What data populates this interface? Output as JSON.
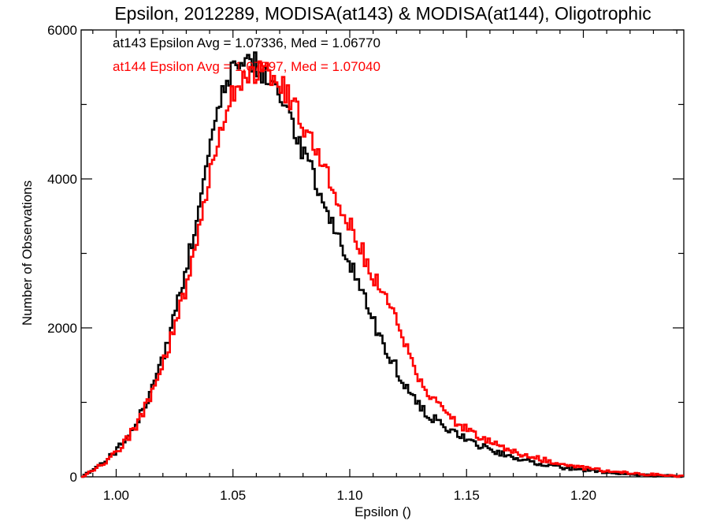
{
  "chart_data": {
    "type": "histogram",
    "title": "Epsilon, 2012289, MODISA(at143) & MODISA(at144), Oligotrophic",
    "xlabel": "Epsilon ()",
    "ylabel": "Number of Observations",
    "xlim": [
      0.985,
      1.243
    ],
    "ylim": [
      0,
      6000
    ],
    "xticks": [
      1.0,
      1.05,
      1.1,
      1.15,
      1.2
    ],
    "xtick_labels": [
      "1.00",
      "1.05",
      "1.10",
      "1.15",
      "1.20"
    ],
    "yticks": [
      0,
      2000,
      4000,
      6000
    ],
    "ytick_labels": [
      "0",
      "2000",
      "4000",
      "6000"
    ],
    "grid": false,
    "legend": [
      "at143 Epsilon Avg = 1.07336, Med = 1.06770",
      "at144 Epsilon Avg = 1.07597, Med = 1.07040"
    ],
    "bin_width": 0.001,
    "series": [
      {
        "name": "at143",
        "color": "#000000",
        "x": [
          0.985,
          0.99,
          0.995,
          1.0,
          1.005,
          1.01,
          1.015,
          1.02,
          1.025,
          1.03,
          1.035,
          1.04,
          1.045,
          1.05,
          1.055,
          1.057,
          1.06,
          1.065,
          1.07,
          1.075,
          1.08,
          1.085,
          1.09,
          1.095,
          1.1,
          1.105,
          1.11,
          1.115,
          1.12,
          1.125,
          1.13,
          1.135,
          1.14,
          1.145,
          1.15,
          1.155,
          1.16,
          1.17,
          1.18,
          1.19,
          1.2,
          1.21,
          1.22,
          1.23,
          1.243
        ],
        "y": [
          0,
          90,
          200,
          350,
          550,
          800,
          1150,
          1600,
          2150,
          2800,
          3550,
          4400,
          5050,
          5450,
          5600,
          5650,
          5550,
          5350,
          5100,
          4750,
          4350,
          4000,
          3650,
          3250,
          2900,
          2500,
          2100,
          1750,
          1450,
          1150,
          950,
          800,
          700,
          600,
          520,
          430,
          360,
          260,
          190,
          130,
          90,
          60,
          40,
          20,
          5
        ]
      },
      {
        "name": "at144",
        "color": "#ff0000",
        "x": [
          0.985,
          0.99,
          0.995,
          1.0,
          1.005,
          1.01,
          1.015,
          1.02,
          1.025,
          1.03,
          1.035,
          1.04,
          1.045,
          1.05,
          1.055,
          1.06,
          1.065,
          1.07,
          1.075,
          1.08,
          1.085,
          1.09,
          1.095,
          1.1,
          1.105,
          1.11,
          1.115,
          1.12,
          1.125,
          1.13,
          1.135,
          1.14,
          1.145,
          1.15,
          1.155,
          1.16,
          1.17,
          1.18,
          1.19,
          1.2,
          1.21,
          1.22,
          1.23,
          1.243
        ],
        "y": [
          0,
          85,
          190,
          330,
          520,
          760,
          1100,
          1500,
          2000,
          2550,
          3250,
          4000,
          4650,
          5150,
          5350,
          5450,
          5450,
          5300,
          5050,
          4750,
          4400,
          4100,
          3750,
          3400,
          3050,
          2700,
          2400,
          2100,
          1650,
          1300,
          1050,
          880,
          740,
          640,
          550,
          470,
          340,
          250,
          180,
          120,
          80,
          50,
          30,
          5
        ]
      }
    ]
  }
}
